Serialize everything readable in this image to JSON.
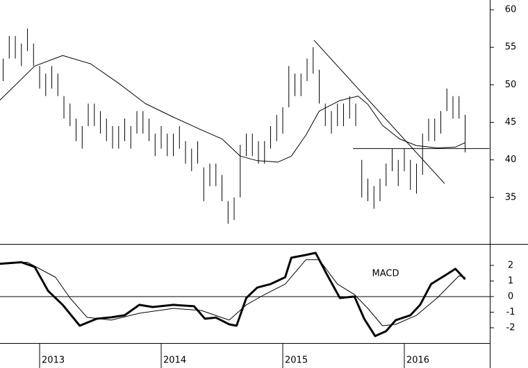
{
  "chart_data": [
    {
      "type": "range-bar",
      "xlim": [
        2012.674,
        2016.703
      ],
      "ylim": [
        28.8,
        61.3
      ],
      "yticks": [
        35,
        40,
        45,
        50,
        55,
        60
      ],
      "color": "#000000",
      "x": [
        2012.7,
        2012.75,
        2012.8,
        2012.85,
        2012.9,
        2012.95,
        2013,
        2013.05,
        2013.1,
        2013.15,
        2013.2,
        2013.25,
        2013.3,
        2013.35,
        2013.4,
        2013.45,
        2013.5,
        2013.55,
        2013.6,
        2013.65,
        2013.7,
        2013.75,
        2013.8,
        2013.85,
        2013.9,
        2013.95,
        2014,
        2014.05,
        2014.1,
        2014.15,
        2014.2,
        2014.25,
        2014.3,
        2014.35,
        2014.4,
        2014.45,
        2014.5,
        2014.55,
        2014.6,
        2014.65,
        2014.7,
        2014.75,
        2014.8,
        2014.85,
        2014.9,
        2014.95,
        2015,
        2015.05,
        2015.1,
        2015.15,
        2015.2,
        2015.25,
        2015.3,
        2015.35,
        2015.4,
        2015.45,
        2015.5,
        2015.55,
        2015.6,
        2015.65,
        2015.7,
        2015.75,
        2015.8,
        2015.85,
        2015.9,
        2015.95,
        2016,
        2016.05,
        2016.1,
        2016.15,
        2016.2,
        2016.25,
        2016.3,
        2016.35,
        2016.4,
        2016.45,
        2016.5
      ],
      "high": [
        53.5,
        56.5,
        56.5,
        55.5,
        57.5,
        55.5,
        52.5,
        51.5,
        52.5,
        51.5,
        48.5,
        47.5,
        45.5,
        44.5,
        47.5,
        47.5,
        46.5,
        45.5,
        44.5,
        44.5,
        45.5,
        44.5,
        46.5,
        46.5,
        45.5,
        43.5,
        44.5,
        43.5,
        43.5,
        44.5,
        42.5,
        41.5,
        42.5,
        39,
        39.5,
        39.5,
        38,
        34.5,
        35,
        42,
        43.5,
        43.5,
        42.5,
        42.5,
        44.5,
        46,
        47,
        52.5,
        51.5,
        51.5,
        53.5,
        55,
        52,
        47.5,
        46.5,
        47.5,
        47.5,
        48.5,
        47.5,
        40,
        37.5,
        36.5,
        37.5,
        39.5,
        41.5,
        40,
        41.5,
        40,
        39.5,
        43.5,
        45.5,
        45.5,
        46.5,
        49.5,
        48.5,
        48.5,
        46
      ],
      "low": [
        50.5,
        53.5,
        53.5,
        52.5,
        54.5,
        52.5,
        49.5,
        48.5,
        49.5,
        48.5,
        45.5,
        44.5,
        42.5,
        41.5,
        44.5,
        44.5,
        43.5,
        42.5,
        41.5,
        41.5,
        42.5,
        41.5,
        43.5,
        43.5,
        42.5,
        40.5,
        41.5,
        40.5,
        40.5,
        41.5,
        39.5,
        38.5,
        39.5,
        34.5,
        36.5,
        36.5,
        34.5,
        31.5,
        32,
        35,
        40.5,
        40.5,
        39.5,
        39.5,
        41.5,
        42.5,
        43.5,
        47,
        48.5,
        48.5,
        50.5,
        51.5,
        47.5,
        44.5,
        43.5,
        44.5,
        44.5,
        45.5,
        44.5,
        35,
        34.5,
        33.5,
        34.5,
        36.5,
        38.5,
        36.5,
        38.5,
        36,
        35.5,
        38,
        42.5,
        42.5,
        43.5,
        46.5,
        45.5,
        45.5,
        41
      ],
      "series": [
        {
          "color": "#000000",
          "width": 1,
          "x": [
            2012.67,
            2012.96,
            2013.19,
            2013.42,
            2013.65,
            2013.87,
            2014.1,
            2014.33,
            2014.5,
            2014.65,
            2014.79,
            2014.96,
            2015.07,
            2015.19,
            2015.3,
            2015.47,
            2015.62,
            2015.7,
            2015.82,
            2015.96,
            2016.1,
            2016.27,
            2016.42,
            2016.5
          ],
          "values": [
            47.9,
            52.5,
            53.9,
            52.8,
            50.2,
            47.5,
            45.7,
            44,
            42.8,
            40.5,
            39.9,
            39.7,
            40.5,
            43.3,
            46.5,
            47.9,
            48.5,
            47.4,
            44.6,
            42.8,
            41.9,
            41.6,
            41.7,
            42.3
          ]
        }
      ],
      "trend_lines": [
        {
          "x": [
            2015.257,
            2016.331
          ],
          "y": [
            55.94,
            36.85
          ]
        },
        {
          "x": [
            2015.577,
            2016.7
          ],
          "y": [
            41.5,
            41.5
          ]
        }
      ]
    },
    {
      "type": "line",
      "xlim": [
        2012.674,
        2016.703
      ],
      "ylim": [
        -2.98,
        3.33
      ],
      "yticks": [
        -2,
        -1,
        0,
        1,
        2
      ],
      "xticks": [
        2013,
        2014,
        2015,
        2016
      ],
      "reference_line": 0,
      "annotation": "MACD",
      "series": [
        {
          "color": "#000000",
          "width": 3,
          "x": [
            2012.67,
            2012.85,
            2012.96,
            2013.07,
            2013.19,
            2013.33,
            2013.47,
            2013.59,
            2013.7,
            2013.82,
            2013.93,
            2014.1,
            2014.27,
            2014.36,
            2014.45,
            2014.56,
            2014.62,
            2014.7,
            2014.79,
            2014.9,
            2015.02,
            2015.07,
            2015.19,
            2015.27,
            2015.36,
            2015.47,
            2015.59,
            2015.67,
            2015.76,
            2015.85,
            2015.93,
            2016.05,
            2016.13,
            2016.22,
            2016.33,
            2016.42,
            2016.5
          ],
          "values": [
            2.1,
            2.2,
            1.9,
            0.36,
            -0.53,
            -1.87,
            -1.42,
            -1.33,
            -1.2,
            -0.53,
            -0.67,
            -0.53,
            -0.62,
            -1.42,
            -1.35,
            -1.78,
            -1.87,
            -0.09,
            0.58,
            0.8,
            1.24,
            2.49,
            2.67,
            2.8,
            1.47,
            -0.09,
            0,
            -1.42,
            -2.53,
            -2.22,
            -1.51,
            -1.2,
            -0.53,
            0.8,
            1.33,
            1.78,
            1.11
          ]
        },
        {
          "color": "#000000",
          "width": 1,
          "x": [
            2012.67,
            2012.9,
            2013.13,
            2013.25,
            2013.39,
            2013.59,
            2013.82,
            2014.1,
            2014.33,
            2014.56,
            2014.7,
            2014.85,
            2015.02,
            2015.19,
            2015.3,
            2015.45,
            2015.59,
            2015.7,
            2015.82,
            2015.93,
            2016.1,
            2016.27,
            2016.45,
            2016.5
          ],
          "values": [
            2.1,
            2.2,
            1.24,
            -0.09,
            -1.33,
            -1.51,
            -1.07,
            -0.76,
            -0.89,
            -1.51,
            -0.53,
            0.13,
            0.8,
            2.36,
            2.36,
            0.8,
            0.13,
            -0.76,
            -1.87,
            -1.78,
            -1.2,
            -0.09,
            1.33,
            1.24
          ]
        }
      ]
    }
  ]
}
